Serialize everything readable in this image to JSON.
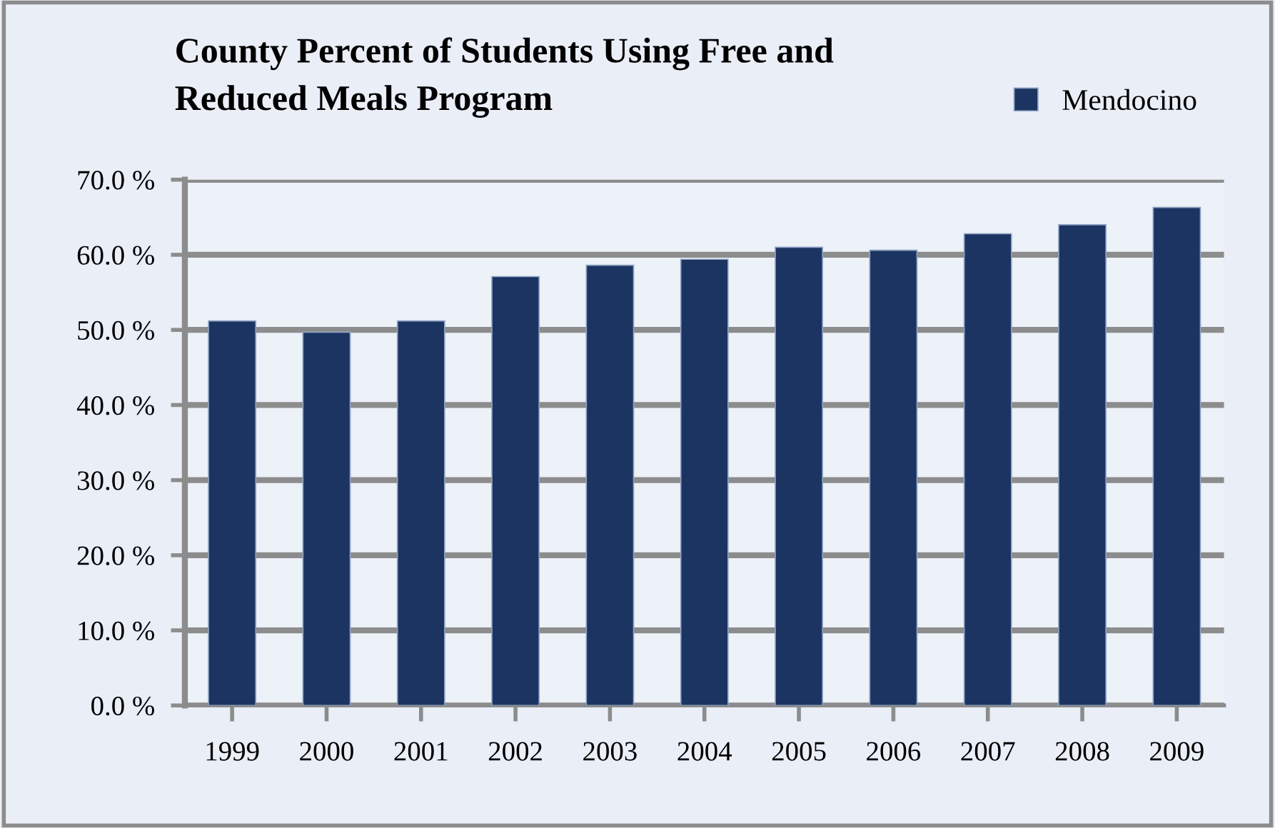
{
  "chart_data": {
    "type": "bar",
    "title": "County Percent of Students Using Free and\nReduced Meals Program",
    "categories": [
      "1999",
      "2000",
      "2001",
      "2002",
      "2003",
      "2004",
      "2005",
      "2006",
      "2007",
      "2008",
      "2009"
    ],
    "series": [
      {
        "name": "Mendocino",
        "color": "#1b3461",
        "values": [
          51.2,
          49.7,
          51.2,
          57.1,
          58.6,
          59.4,
          61.0,
          60.6,
          62.8,
          64.0,
          66.3
        ]
      }
    ],
    "ylim": [
      0,
      70
    ],
    "yticks": [
      {
        "value": 0,
        "label": "0.0 %"
      },
      {
        "value": 10,
        "label": "10.0 %"
      },
      {
        "value": 20,
        "label": "20.0 %"
      },
      {
        "value": 30,
        "label": "30.0 %"
      },
      {
        "value": 40,
        "label": "40.0 %"
      },
      {
        "value": 50,
        "label": "50.0 %"
      },
      {
        "value": 60,
        "label": "60.0 %"
      },
      {
        "value": 70,
        "label": "70.0 %"
      }
    ],
    "grid": "y",
    "legend": "top right"
  }
}
